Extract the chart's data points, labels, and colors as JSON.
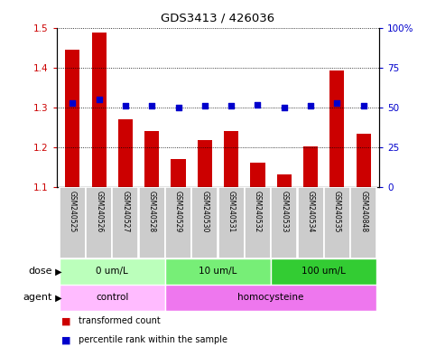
{
  "title": "GDS3413 / 426036",
  "samples": [
    "GSM240525",
    "GSM240526",
    "GSM240527",
    "GSM240528",
    "GSM240529",
    "GSM240530",
    "GSM240531",
    "GSM240532",
    "GSM240533",
    "GSM240534",
    "GSM240535",
    "GSM240848"
  ],
  "bar_values": [
    1.445,
    1.488,
    1.27,
    1.242,
    1.17,
    1.218,
    1.242,
    1.162,
    1.132,
    1.202,
    1.393,
    1.235
  ],
  "percentile_values": [
    53,
    55,
    51,
    51,
    50,
    51,
    51,
    52,
    50,
    51,
    53,
    51
  ],
  "bar_color": "#cc0000",
  "percentile_color": "#0000cc",
  "bar_bottom": 1.1,
  "ylim_left": [
    1.1,
    1.5
  ],
  "ylim_right": [
    0,
    100
  ],
  "yticks_left": [
    1.1,
    1.2,
    1.3,
    1.4,
    1.5
  ],
  "yticks_right": [
    0,
    25,
    50,
    75,
    100
  ],
  "ytick_labels_right": [
    "0",
    "25",
    "50",
    "75",
    "100%"
  ],
  "dose_groups": [
    {
      "label": "0 um/L",
      "start": 0,
      "end": 4,
      "color": "#bbffbb"
    },
    {
      "label": "10 um/L",
      "start": 4,
      "end": 8,
      "color": "#77ee77"
    },
    {
      "label": "100 um/L",
      "start": 8,
      "end": 12,
      "color": "#33cc33"
    }
  ],
  "agent_groups": [
    {
      "label": "control",
      "start": 0,
      "end": 4,
      "color": "#ffbbff"
    },
    {
      "label": "homocysteine",
      "start": 4,
      "end": 12,
      "color": "#ee77ee"
    }
  ],
  "legend_bar_label": "transformed count",
  "legend_pct_label": "percentile rank within the sample",
  "dose_label": "dose",
  "agent_label": "agent",
  "background_color": "#ffffff",
  "sample_box_color": "#cccccc",
  "sample_box_edge": "#ffffff"
}
